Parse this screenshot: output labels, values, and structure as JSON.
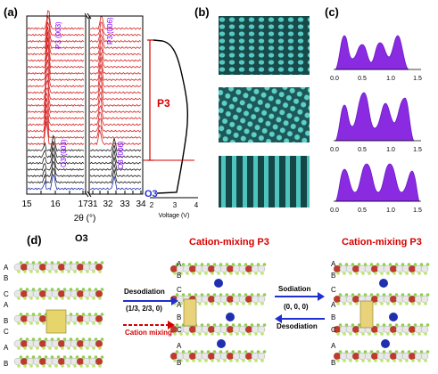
{
  "panel_labels": {
    "a": "(a)",
    "b": "(b)",
    "c": "(c)",
    "d": "(d)"
  },
  "colors": {
    "red_trace": "#d62020",
    "black_trace": "#1a1a1a",
    "blue_trace": "#1f2fb0",
    "purple": "#7f00ff",
    "accent_red": "#d60000",
    "accent_blue": "#1f2fd0",
    "tem_teal": "#3aa3a0",
    "atom_green": "#8fcf4a",
    "atom_red": "#c0392b"
  },
  "panel_a": {
    "peak_labels": {
      "p3_003": "P3 (003)",
      "o3_003": "O3 (003)",
      "p3_006": "P3 (006)",
      "o3_006": "O3 (006)"
    },
    "phase_labels": {
      "p3": "P3",
      "o3": "O3"
    },
    "x_ticks_left": [
      "15",
      "16",
      "17"
    ],
    "x_ticks_right": [
      "31",
      "32",
      "33",
      "34"
    ],
    "x_axis_label": "2θ (°)",
    "voltage_ticks": [
      "2",
      "3",
      "4"
    ],
    "voltage_label": "Voltage (V)"
  },
  "panel_c": {
    "x_ticks": [
      "0.0",
      "0.5",
      "1.0",
      "1.5"
    ]
  },
  "panel_d": {
    "structures": [
      {
        "title": "O3",
        "title_color": "#000000",
        "layers": [
          "A",
          "B",
          "C",
          "A",
          "B",
          "C",
          "A",
          "B"
        ]
      },
      {
        "title": "Cation-mixing P3",
        "title_color": "#d60000",
        "layers": [
          "A",
          "B",
          "C",
          "A",
          "B",
          "C",
          "A",
          "B"
        ]
      },
      {
        "title": "Cation-mixing P3",
        "title_color": "#d60000",
        "layers": [
          "A",
          "B",
          "C",
          "A",
          "B",
          "C",
          "A",
          "B"
        ]
      }
    ],
    "arrow1": {
      "top_label": "Desodiation",
      "vector_label": "(1/3, 2/3, 0)",
      "bottom_label": "Cation mixing"
    },
    "arrow2": {
      "top_label": "Sodiation",
      "vector_label": "(0, 0, 0)",
      "bottom_label": "Desodiation"
    }
  },
  "chart_data": [
    {
      "type": "line",
      "title": "",
      "xlabel": "2θ (°)",
      "ylabel": "",
      "x_segments": [
        [
          15,
          17
        ],
        [
          31,
          34
        ]
      ],
      "series": [
        {
          "name": "P3",
          "values": []
        },
        {
          "name": "O3",
          "values": []
        }
      ]
    },
    {
      "type": "line",
      "xlabel": "Voltage (V)",
      "xlim": [
        2,
        4
      ],
      "series": [
        {
          "name": "",
          "values": []
        }
      ]
    },
    {
      "type": "area",
      "xlim": [
        0.0,
        1.5
      ],
      "series": [
        {
          "name": "",
          "values": []
        }
      ]
    }
  ]
}
